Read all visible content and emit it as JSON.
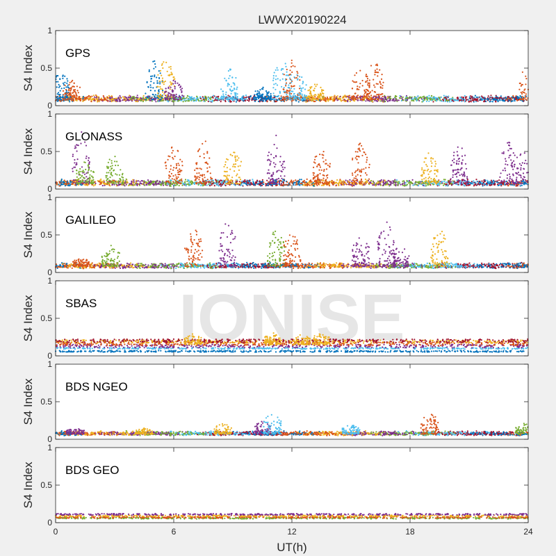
{
  "figure": {
    "title": "LWWX20190224",
    "xlabel": "UT(h)",
    "watermark": "IONISE"
  },
  "colors": {
    "background": "#f0f0f0",
    "axes_bg": "#ffffff",
    "palette": [
      "#0072bd",
      "#d95319",
      "#edb120",
      "#7e2f8e",
      "#77ac30",
      "#4dbeee",
      "#a2142f"
    ]
  },
  "chart_data": [
    {
      "type": "scatter",
      "panel": "GPS",
      "ylabel": "S4 Index",
      "xlim": [
        0,
        24
      ],
      "ylim": [
        0,
        1
      ],
      "xticks": [
        0,
        6,
        12,
        18,
        24
      ],
      "yticks": [
        0,
        0.5,
        1
      ],
      "yticklabels": [
        "0",
        "0.5",
        "1"
      ],
      "xticklabels": [],
      "baseline": 0.08,
      "noise": 0.06,
      "bursts": [
        [
          0.3,
          0.5,
          0
        ],
        [
          0.8,
          0.35,
          1
        ],
        [
          5.0,
          0.62,
          0
        ],
        [
          5.6,
          0.66,
          2
        ],
        [
          6.0,
          0.35,
          3
        ],
        [
          8.8,
          0.52,
          5
        ],
        [
          10.5,
          0.25,
          0
        ],
        [
          11.5,
          0.65,
          5
        ],
        [
          12.0,
          0.62,
          1
        ],
        [
          12.3,
          0.45,
          5
        ],
        [
          13.2,
          0.3,
          2
        ],
        [
          15.5,
          0.55,
          1
        ],
        [
          16.2,
          0.62,
          1
        ],
        [
          24.0,
          0.6,
          1
        ]
      ],
      "series_order": [
        0,
        1,
        2,
        3,
        4,
        5,
        6
      ]
    },
    {
      "type": "scatter",
      "panel": "GLONASS",
      "ylabel": "S4 Index",
      "xlim": [
        0,
        24
      ],
      "ylim": [
        0,
        1
      ],
      "xticks": [
        0,
        6,
        12,
        18,
        24
      ],
      "yticks": [
        0,
        0.5,
        1
      ],
      "yticklabels": [
        "0",
        "0.5",
        "1"
      ],
      "xticklabels": [],
      "baseline": 0.07,
      "noise": 0.06,
      "bursts": [
        [
          1.3,
          0.78,
          3
        ],
        [
          1.5,
          0.4,
          4
        ],
        [
          3.0,
          0.5,
          4
        ],
        [
          6.0,
          0.62,
          1
        ],
        [
          7.5,
          0.72,
          1
        ],
        [
          9.0,
          0.58,
          2
        ],
        [
          11.2,
          0.72,
          3
        ],
        [
          13.5,
          0.58,
          1
        ],
        [
          15.5,
          0.65,
          1
        ],
        [
          19.0,
          0.52,
          2
        ],
        [
          20.5,
          0.65,
          3
        ],
        [
          23.0,
          0.65,
          3
        ],
        [
          23.8,
          0.55,
          3
        ]
      ],
      "series_order": [
        0,
        1,
        2,
        3,
        4,
        5,
        6
      ]
    },
    {
      "type": "scatter",
      "panel": "GALILEO",
      "ylabel": "S4 Index",
      "xlim": [
        0,
        24
      ],
      "ylim": [
        0,
        1
      ],
      "xticks": [
        0,
        6,
        12,
        18,
        24
      ],
      "yticks": [
        0,
        0.5,
        1
      ],
      "yticklabels": [
        "0",
        "0.5",
        "1"
      ],
      "xticklabels": [],
      "baseline": 0.08,
      "noise": 0.05,
      "bursts": [
        [
          1.3,
          0.2,
          1
        ],
        [
          2.8,
          0.38,
          4
        ],
        [
          7.0,
          0.65,
          1
        ],
        [
          8.7,
          0.72,
          3
        ],
        [
          11.2,
          0.6,
          4
        ],
        [
          12.0,
          0.55,
          1
        ],
        [
          15.5,
          0.5,
          3
        ],
        [
          16.8,
          0.7,
          3
        ],
        [
          17.5,
          0.38,
          3
        ],
        [
          19.5,
          0.62,
          2
        ]
      ],
      "series_order": [
        0,
        1,
        2,
        3,
        4,
        5,
        6
      ]
    },
    {
      "type": "scatter",
      "panel": "SBAS",
      "ylabel": "S4 Index",
      "xlim": [
        0,
        24
      ],
      "ylim": [
        0,
        1
      ],
      "xticks": [
        0,
        6,
        12,
        18,
        24
      ],
      "yticks": [
        0,
        0.5,
        1
      ],
      "yticklabels": [
        "0",
        "0.5",
        "1"
      ],
      "xticklabels": [],
      "levels": [
        0.06,
        0.1,
        0.13,
        0.16,
        0.19,
        0.2
      ],
      "bursts": [
        [
          7.0,
          0.3,
          2
        ],
        [
          11.0,
          0.32,
          2
        ],
        [
          12.5,
          0.3,
          2
        ],
        [
          13.5,
          0.32,
          2
        ]
      ],
      "series_order": [
        0,
        5,
        3,
        1,
        2,
        6
      ]
    },
    {
      "type": "scatter",
      "panel": "BDS NGEO",
      "ylabel": "S4 Index",
      "xlim": [
        0,
        24
      ],
      "ylim": [
        0,
        1
      ],
      "xticks": [
        0,
        6,
        12,
        18,
        24
      ],
      "yticks": [
        0,
        0.5,
        1
      ],
      "yticklabels": [
        "0",
        "0.5",
        "1"
      ],
      "xticklabels": [],
      "baseline": 0.07,
      "noise": 0.04,
      "bursts": [
        [
          1.0,
          0.15,
          3
        ],
        [
          4.5,
          0.15,
          2
        ],
        [
          8.5,
          0.22,
          2
        ],
        [
          10.5,
          0.25,
          3
        ],
        [
          11.0,
          0.38,
          5
        ],
        [
          15.0,
          0.2,
          5
        ],
        [
          19.0,
          0.38,
          1
        ],
        [
          23.8,
          0.22,
          4
        ]
      ],
      "series_order": [
        0,
        1,
        2,
        3,
        4,
        5,
        6
      ]
    },
    {
      "type": "scatter",
      "panel": "BDS GEO",
      "ylabel": "S4 Index",
      "xlim": [
        0,
        24
      ],
      "ylim": [
        0,
        1
      ],
      "xticks": [
        0,
        6,
        12,
        18,
        24
      ],
      "yticks": [
        0,
        0.5,
        1
      ],
      "yticklabels": [
        "0",
        "0.5",
        "1"
      ],
      "xticklabels": [
        "0",
        "6",
        "12",
        "18",
        "24"
      ],
      "levels": [
        0.06,
        0.07,
        0.09,
        0.11
      ],
      "bursts": [],
      "series_order": [
        4,
        1,
        2,
        3
      ]
    }
  ]
}
